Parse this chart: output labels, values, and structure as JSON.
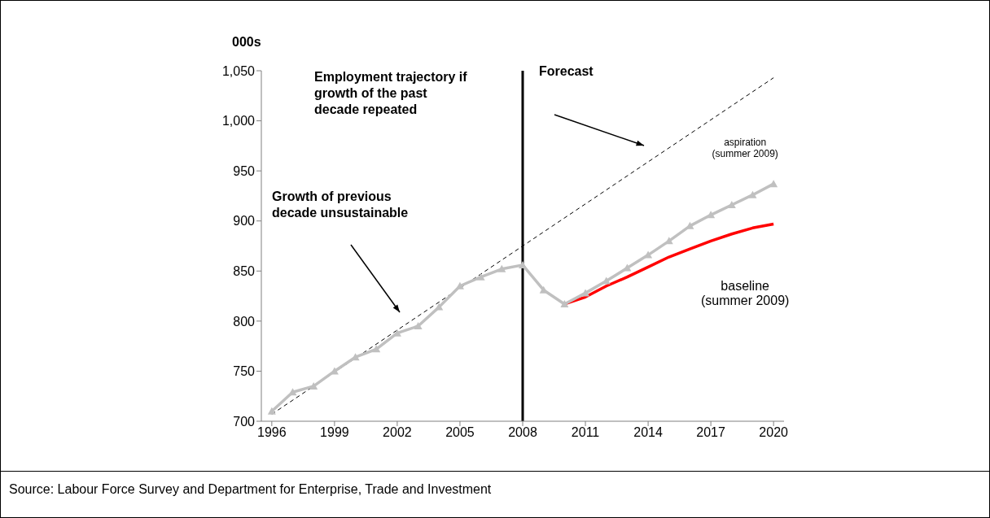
{
  "chart_data": {
    "type": "line",
    "ylabel": "000s",
    "x": [
      1996,
      1997,
      1998,
      1999,
      2000,
      2001,
      2002,
      2003,
      2004,
      2005,
      2006,
      2007,
      2008,
      2009,
      2010,
      2011,
      2012,
      2013,
      2014,
      2015,
      2016,
      2017,
      2018,
      2019,
      2020
    ],
    "xlim": [
      1995.5,
      2020.5
    ],
    "xticks": [
      1996,
      1999,
      2002,
      2005,
      2008,
      2011,
      2014,
      2017,
      2020
    ],
    "ylim": [
      700,
      1050
    ],
    "yticks": [
      700,
      750,
      800,
      850,
      900,
      950,
      {
        "value": 1000,
        "label": "1,000"
      },
      {
        "value": 1050,
        "label": "1,050"
      }
    ],
    "series": [
      {
        "x": [
          1996,
          2020
        ],
        "values": [
          707,
          1043
        ],
        "color": "#000000",
        "line_style": "dashed",
        "marker": "none"
      },
      {
        "name": "baseline (summer 2009)",
        "color": "#ff0000",
        "marker": "none",
        "values": [
          null,
          null,
          null,
          null,
          null,
          null,
          null,
          null,
          null,
          null,
          null,
          null,
          null,
          null,
          817,
          824,
          835,
          844,
          854,
          864,
          872,
          880,
          887,
          893,
          897
        ]
      },
      {
        "name": "aspiration (summer 2009)",
        "color": "#c0c0c0",
        "marker": "triangle",
        "values": [
          710,
          729,
          735,
          750,
          764,
          772,
          788,
          795,
          814,
          835,
          844,
          852,
          856,
          831,
          817,
          828,
          840,
          853,
          866,
          880,
          895,
          906,
          916,
          926,
          937
        ]
      }
    ],
    "ref_lines": [
      {
        "axis": "x",
        "value": 2008,
        "label": "Forecast",
        "color": "#000000"
      }
    ],
    "annotations": [
      "Employment trajectory if growth of the past decade repeated",
      "Growth of previous decade unsustainable",
      "Source: Labour Force Survey and Department for Enterprise, Trade and Investment"
    ]
  }
}
